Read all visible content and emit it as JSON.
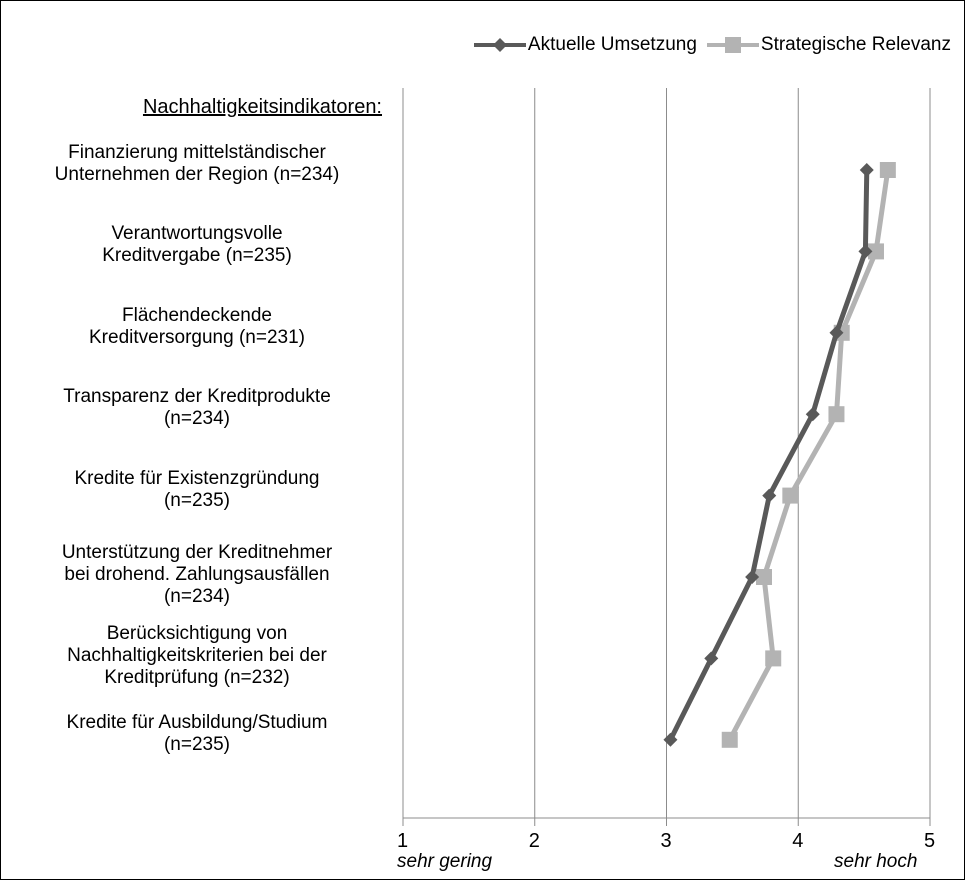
{
  "chart_data": {
    "type": "line",
    "orientation": "horizontal",
    "section_title": "Nachhaltigkeitsindikatoren:",
    "categories": [
      "Finanzierung mittelständischer\nUnternehmen der Region (n=234)",
      "Verantwortungsvolle\nKreditvergabe (n=235)",
      "Flächendeckende\nKreditversorgung (n=231)",
      "Transparenz der Kreditprodukte\n(n=234)",
      "Kredite für Existenzgründung\n(n=235)",
      "Unterstützung der Kreditnehmer\nbei drohend. Zahlungsausfällen\n(n=234)",
      "Berücksichtigung von\nNachhaltigkeitskriterien bei der\nKreditprüfung (n=232)",
      "Kredite für Ausbildung/Studium\n(n=235)"
    ],
    "series": [
      {
        "name": "Aktuelle Umsetzung",
        "marker": "diamond",
        "color": "#595959",
        "values": [
          4.52,
          4.51,
          4.29,
          4.11,
          3.78,
          3.65,
          3.34,
          3.03
        ]
      },
      {
        "name": "Strategische Relevanz",
        "marker": "square",
        "color": "#b3b3b3",
        "values": [
          4.68,
          4.59,
          4.33,
          4.29,
          3.94,
          3.74,
          3.81,
          3.48
        ]
      }
    ],
    "xlim": [
      1,
      5
    ],
    "xticks": [
      "1",
      "2",
      "3",
      "4",
      "5"
    ],
    "x_axis_low_label": "sehr gering",
    "x_axis_high_label": "sehr hoch",
    "grid": "vertical",
    "legend_position": "top-right"
  }
}
